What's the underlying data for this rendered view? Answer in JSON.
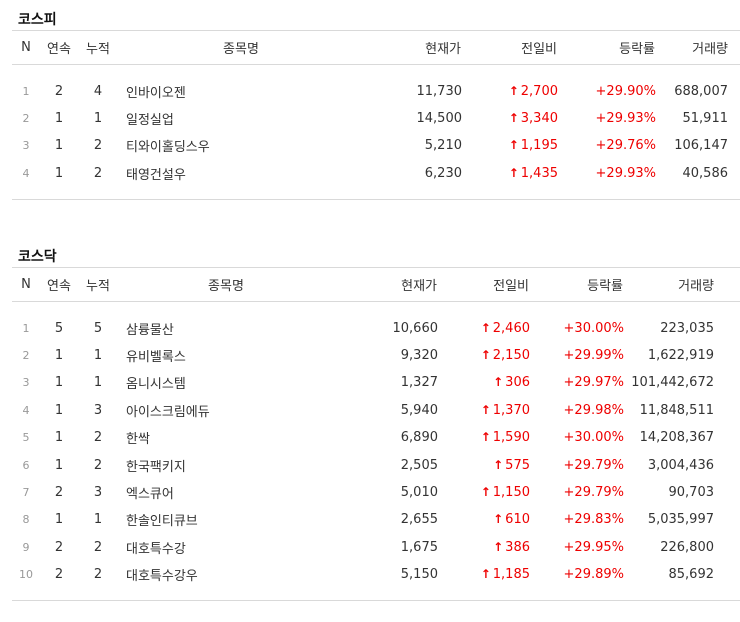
{
  "kospi": {
    "title": "코스피",
    "headers": [
      "N",
      "연속",
      "누적",
      "종목명",
      "현재가",
      "전일비",
      "등락률",
      "거래량"
    ],
    "rows": [
      {
        "n": "1",
        "streak": "2",
        "total": "4",
        "name": "인바이오젠",
        "price": "11,730",
        "change": "2,700",
        "rate": "+29.90%",
        "volume": "688,007"
      },
      {
        "n": "2",
        "streak": "1",
        "total": "1",
        "name": "일정실업",
        "price": "14,500",
        "change": "3,340",
        "rate": "+29.93%",
        "volume": "51,911"
      },
      {
        "n": "3",
        "streak": "1",
        "total": "2",
        "name": "티와이홀딩스우",
        "price": "5,210",
        "change": "1,195",
        "rate": "+29.76%",
        "volume": "106,147"
      },
      {
        "n": "4",
        "streak": "1",
        "total": "2",
        "name": "태영건설우",
        "price": "6,230",
        "change": "1,435",
        "rate": "+29.93%",
        "volume": "40,586"
      }
    ]
  },
  "kosdaq": {
    "title": "코스닥",
    "headers": [
      "N",
      "연속",
      "누적",
      "종목명",
      "현재가",
      "전일비",
      "등락률",
      "거래량"
    ],
    "rows": [
      {
        "n": "1",
        "streak": "5",
        "total": "5",
        "name": "삼륭물산",
        "price": "10,660",
        "change": "2,460",
        "rate": "+30.00%",
        "volume": "223,035"
      },
      {
        "n": "2",
        "streak": "1",
        "total": "1",
        "name": "유비벨록스",
        "price": "9,320",
        "change": "2,150",
        "rate": "+29.99%",
        "volume": "1,622,919"
      },
      {
        "n": "3",
        "streak": "1",
        "total": "1",
        "name": "옴니시스템",
        "price": "1,327",
        "change": "306",
        "rate": "+29.97%",
        "volume": "101,442,672"
      },
      {
        "n": "4",
        "streak": "1",
        "total": "3",
        "name": "아이스크림에듀",
        "price": "5,940",
        "change": "1,370",
        "rate": "+29.98%",
        "volume": "11,848,511"
      },
      {
        "n": "5",
        "streak": "1",
        "total": "2",
        "name": "한싹",
        "price": "6,890",
        "change": "1,590",
        "rate": "+30.00%",
        "volume": "14,208,367"
      },
      {
        "n": "6",
        "streak": "1",
        "total": "2",
        "name": "한국팩키지",
        "price": "2,505",
        "change": "575",
        "rate": "+29.79%",
        "volume": "3,004,436"
      },
      {
        "n": "7",
        "streak": "2",
        "total": "3",
        "name": "엑스큐어",
        "price": "5,010",
        "change": "1,150",
        "rate": "+29.79%",
        "volume": "90,703"
      },
      {
        "n": "8",
        "streak": "1",
        "total": "1",
        "name": "한솔인티큐브",
        "price": "2,655",
        "change": "610",
        "rate": "+29.83%",
        "volume": "5,035,997"
      },
      {
        "n": "9",
        "streak": "2",
        "total": "2",
        "name": "대호특수강",
        "price": "1,675",
        "change": "386",
        "rate": "+29.95%",
        "volume": "226,800"
      },
      {
        "n": "10",
        "streak": "2",
        "total": "2",
        "name": "대호특수강우",
        "price": "5,150",
        "change": "1,185",
        "rate": "+29.89%",
        "volume": "85,692"
      }
    ]
  }
}
